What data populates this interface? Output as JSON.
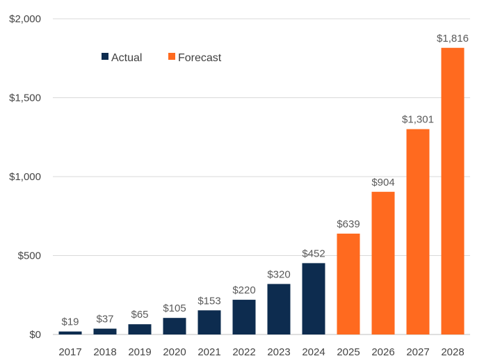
{
  "chart_data": {
    "type": "bar",
    "categories": [
      "2017",
      "2018",
      "2019",
      "2020",
      "2021",
      "2022",
      "2023",
      "2024",
      "2025",
      "2026",
      "2027",
      "2028"
    ],
    "values": [
      19,
      37,
      65,
      105,
      153,
      220,
      320,
      452,
      639,
      904,
      1301,
      1816
    ],
    "data_labels": [
      "$19",
      "$37",
      "$65",
      "$105",
      "$153",
      "$220",
      "$320",
      "$452",
      "$639",
      "$904",
      "$1,301",
      "$1,816"
    ],
    "groups": [
      "Actual",
      "Actual",
      "Actual",
      "Actual",
      "Actual",
      "Actual",
      "Actual",
      "Actual",
      "Forecast",
      "Forecast",
      "Forecast",
      "Forecast"
    ],
    "legend": [
      {
        "name": "Actual",
        "color": "#0d2c4f"
      },
      {
        "name": "Forecast",
        "color": "#ff6a1f"
      }
    ],
    "legend_position": "top-left",
    "ylim": [
      0,
      2000
    ],
    "yticks": [
      0,
      500,
      1000,
      1500,
      2000
    ],
    "ytick_labels": [
      "$0",
      "$500",
      "$1,000",
      "$1,500",
      "$2,000"
    ],
    "grid": true,
    "title": "",
    "xlabel": "",
    "ylabel": ""
  }
}
